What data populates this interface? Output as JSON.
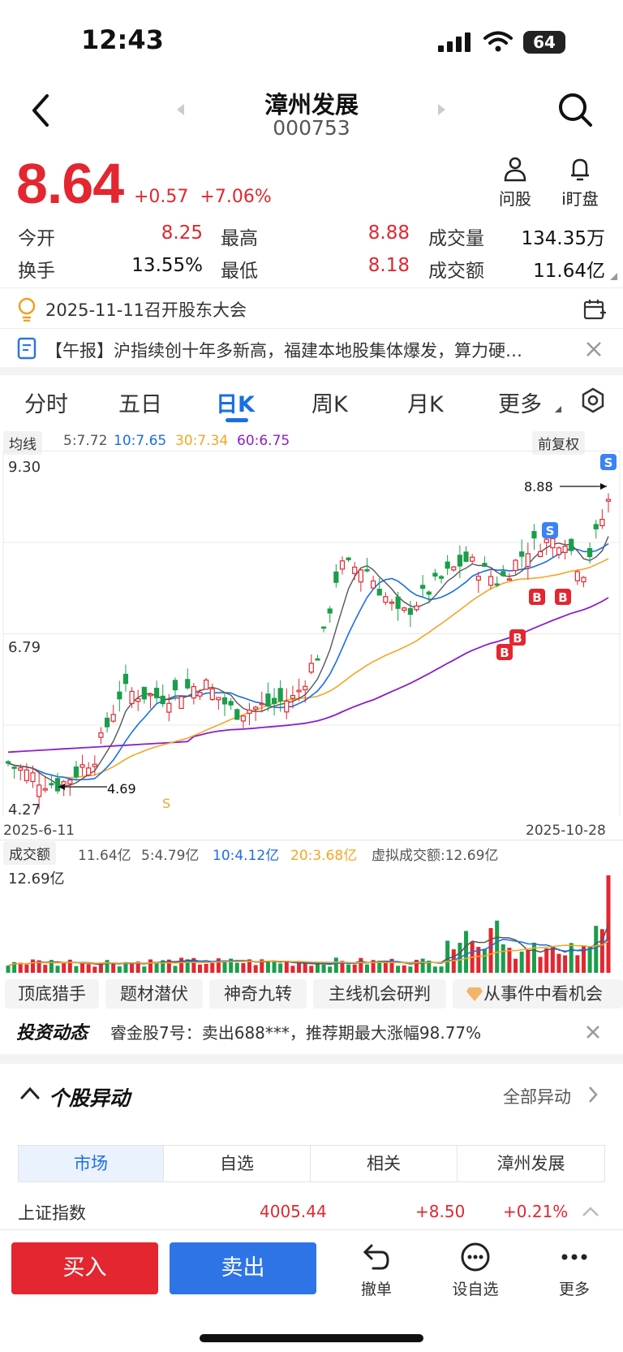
{
  "status": {
    "time": "12:43",
    "battery": "64"
  },
  "header": {
    "title": "漳州发展",
    "code": "000753"
  },
  "price": {
    "last": "8.64",
    "change": "+0.57",
    "change_pct": "+7.06%"
  },
  "top_buttons": {
    "ask": "问股",
    "watch": "i盯盘"
  },
  "quote": {
    "open_label": "今开",
    "open": "8.25",
    "high_label": "最高",
    "high": "8.88",
    "volume_label": "成交量",
    "volume": "134.35万",
    "turnover_label": "换手",
    "turnover": "13.55%",
    "low_label": "最低",
    "low": "8.18",
    "amount_label": "成交额",
    "amount": "11.64亿"
  },
  "notices": {
    "meeting": "2025-11-11召开股东大会",
    "news": "【午报】沪指续创十年多新高，福建本地股集体爆发，算力硬…"
  },
  "tabs": [
    "分时",
    "五日",
    "日K",
    "周K",
    "月K",
    "更多"
  ],
  "ma_bar": {
    "chip": "均线",
    "ma5": "5:7.72",
    "ma10": "10:7.65",
    "ma30": "30:7.34",
    "ma60": "60:6.75",
    "adjust": "前复权"
  },
  "chart_data": {
    "type": "candlestick",
    "y_top": "9.30",
    "y_mid": "6.79",
    "y_bottom": "4.27",
    "ylim": [
      4.27,
      9.3
    ],
    "start_date": "2025-6-11",
    "end_date": "2025-10-28",
    "high_marker": "8.88",
    "low_marker": "4.69",
    "colors": {
      "up": "#e3262f",
      "down": "#1a9e4b",
      "ma5": "#555555",
      "ma10": "#1a6ee6",
      "ma30": "#f5a623",
      "ma60": "#8b1fc9"
    }
  },
  "volume_bar": {
    "chip": "成交额",
    "current": "11.64亿",
    "ma5": "5:4.79亿",
    "ma10": "10:4.12亿",
    "ma20": "20:3.68亿",
    "virtual": "虚拟成交额:12.69亿",
    "max": "12.69亿"
  },
  "features": [
    "顶底猎手",
    "题材潜伏",
    "神奇九转",
    "主线机会研判",
    "从事件中看机会"
  ],
  "invest": {
    "label": "投资动态",
    "text": "睿金股7号：卖出688***，推荐期最大涨幅98.77%"
  },
  "anomaly": {
    "title": "个股异动",
    "all": "全部异动"
  },
  "segments": [
    "市场",
    "自选",
    "相关",
    "漳州发展"
  ],
  "index_row": {
    "name": "上证指数",
    "value": "4005.44",
    "change": "+8.50",
    "pct": "+0.21%"
  },
  "actions": {
    "buy": "买入",
    "sell": "卖出",
    "cancel": "撤单",
    "watchlist": "设自选",
    "more": "更多"
  }
}
